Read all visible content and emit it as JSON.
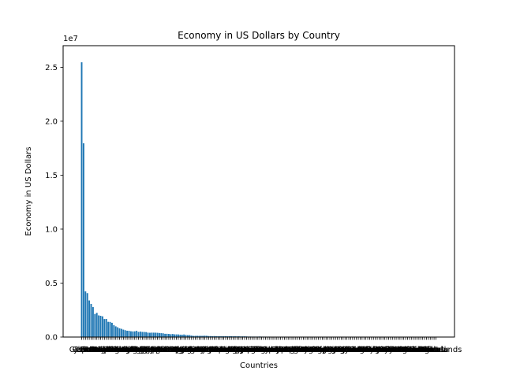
{
  "chart_data": {
    "type": "bar",
    "title": "Economy in US Dollars by Country",
    "xlabel": "Countries",
    "ylabel": "Economy in US Dollars",
    "offset_text": "1e7",
    "scale_factor": 10000000,
    "ylim": [
      0,
      27000000
    ],
    "yticks": [
      0,
      5000000,
      10000000,
      15000000,
      20000000,
      25000000
    ],
    "ytick_labels": [
      "0.0",
      "0.5",
      "1.0",
      "1.5",
      "2.0",
      "2.5"
    ],
    "grid": false,
    "bar_color": "#1f77b4",
    "categories": [
      "US",
      "China",
      "Japan",
      "Germany",
      "India",
      "UK",
      "France",
      "Canada",
      "Russia",
      "Italy",
      "Iran",
      "Brazil",
      "South Korea",
      "Australia",
      "Mexico",
      "Spain",
      "Indonesia",
      "Saudi Arabia",
      "Netherlands",
      "Turkey",
      "Switzerland",
      "Taiwan",
      "Poland",
      "Argentina",
      "Sweden",
      "Belgium",
      "Thailand",
      "Israel",
      "Ireland",
      "Norway",
      "Nigeria",
      "UAE",
      "Egypt",
      "Austria",
      "Bangladesh",
      "Malaysia",
      "Singapore",
      "Vietnam",
      "South Africa",
      "Philippines",
      "Denmark",
      "Pakistan",
      "Hong Kong",
      "Colombia",
      "Chile",
      "Romania",
      "Czech Republic",
      "Iraq",
      "Finland",
      "Portugal",
      "New Zealand",
      "Peru",
      "Kazakhstan",
      "Greece",
      "Qatar",
      "Algeria",
      "Hungary",
      "Kuwait",
      "Morocco",
      "Angola",
      "Puerto Rico",
      "Ecuador",
      "Kenya",
      "Slovakia",
      "Dominican Republic",
      "Ethiopia",
      "Oman",
      "Guatemala",
      "Bulgaria",
      "Luxembourg",
      "Venezuela",
      "Belarus",
      "Uzbekistan",
      "Tanzania",
      "Ghana",
      "Turkmenistan",
      "Sri Lanka",
      "Uruguay",
      "Panama",
      "Azerbaijan",
      "Croatia",
      "Cote d'Ivoire",
      "Costa Rica",
      "Lithuania",
      "DR Congo",
      "Serbia",
      "Slovenia",
      "Myanmar",
      "Uganda",
      "Jordan",
      "Tunisia",
      "Cameroon",
      "Bahrain",
      "Bolivia",
      "Sudan",
      "Paraguay",
      "Libya",
      "Latvia",
      "Estonia",
      "Nepal",
      "Zimbabwe",
      "El Salvador",
      "Papua New Guinea",
      "Honduras",
      "Trinidad and Tobago",
      "Cambodia",
      "Iceland",
      "Cyprus",
      "Senegal",
      "Zambia",
      "Georgia",
      "Bosnia",
      "Macau",
      "Gabon",
      "Haiti",
      "Guinea",
      "Mali",
      "Burkina Faso",
      "Albania",
      "Botswana",
      "Mozambique",
      "Armenia",
      "Benin",
      "Malta",
      "Equatorial Guinea",
      "Mongolia",
      "Jamaica",
      "Nicaragua",
      "Niger",
      "Guyana",
      "Brunei",
      "Namibia",
      "Moldova",
      "Madagascar",
      "Laos",
      "Congo",
      "North Macedonia",
      "Mauritius",
      "Rwanda",
      "Bahamas",
      "Malawi",
      "Kyrgyzstan",
      "Chad",
      "Tajikistan",
      "Somalia",
      "Kosovo",
      "Mauritania",
      "Togo",
      "Bermuda",
      "Montenegro",
      "Maldives",
      "Barbados",
      "Fiji",
      "Sierra Leone",
      "Eswatini",
      "Liberia",
      "Andorra",
      "Suriname",
      "Burundi",
      "Aruba",
      "Lesotho",
      "Bhutan",
      "Cape Verde",
      "Belize",
      "CAR",
      "Djibouti",
      "Gambia",
      "Saint Lucia",
      "Seychelles",
      "Antigua",
      "Guinea-Bissau",
      "San Marino",
      "Solomon Islands",
      "Grenada",
      "Comoros",
      "Vanuatu",
      "Samoa",
      "Saint Kitts",
      "St Vincent",
      "Dominica",
      "Tonga",
      "Sao Tome",
      "Micronesia",
      "Palau",
      "Marshall Islands",
      "Kiribati",
      "Nauru",
      "Tuvalu"
    ],
    "values": [
      25460000,
      17960000,
      4230000,
      4070000,
      3390000,
      3070000,
      2780000,
      2140000,
      2240000,
      2010000,
      1970000,
      1920000,
      1670000,
      1680000,
      1410000,
      1400000,
      1320000,
      1110000,
      991000,
      906000,
      808000,
      762000,
      688000,
      633000,
      586000,
      579000,
      536000,
      522000,
      529000,
      579000,
      477000,
      507000,
      477000,
      471000,
      460000,
      407000,
      397000,
      409000,
      406000,
      404000,
      395000,
      376000,
      360000,
      344000,
      301000,
      301000,
      290000,
      264000,
      283000,
      252000,
      247000,
      243000,
      221000,
      219000,
      237000,
      195000,
      177000,
      184000,
      134000,
      107000,
      113000,
      115000,
      113000,
      115000,
      114000,
      127000,
      115000,
      95000,
      90000,
      82000,
      92000,
      73000,
      81000,
      76000,
      73000,
      81000,
      75000,
      71000,
      77000,
      79000,
      71000,
      70000,
      68000,
      70000,
      59000,
      64000,
      62000,
      59000,
      46000,
      48000,
      46000,
      44000,
      44000,
      44000,
      52000,
      42000,
      41000,
      41000,
      38000,
      40000,
      32000,
      32000,
      31000,
      32000,
      28000,
      30000,
      28000,
      28000,
      27000,
      29000,
      25000,
      24000,
      24000,
      21000,
      20000,
      21000,
      19000,
      19000,
      18000,
      20000,
      18000,
      19000,
      17000,
      18000,
      17000,
      17000,
      17000,
      15000,
      15000,
      15000,
      17000,
      13000,
      14000,
      15000,
      15000,
      14000,
      14000,
      13000,
      13000,
      13000,
      13000,
      11000,
      12000,
      10000,
      8000,
      9000,
      10000,
      8000,
      7000,
      6000,
      6000,
      6000,
      5000,
      4000,
      5000,
      4000,
      3000,
      4000,
      3000,
      3000,
      2500,
      2700,
      2200,
      2800,
      2400,
      3500,
      2100,
      2300,
      2000,
      1800,
      1600,
      1800,
      1600,
      1300,
      1200,
      1000,
      900,
      1100,
      1000,
      600,
      500,
      500,
      400,
      300,
      300,
      200,
      150,
      60
    ]
  }
}
